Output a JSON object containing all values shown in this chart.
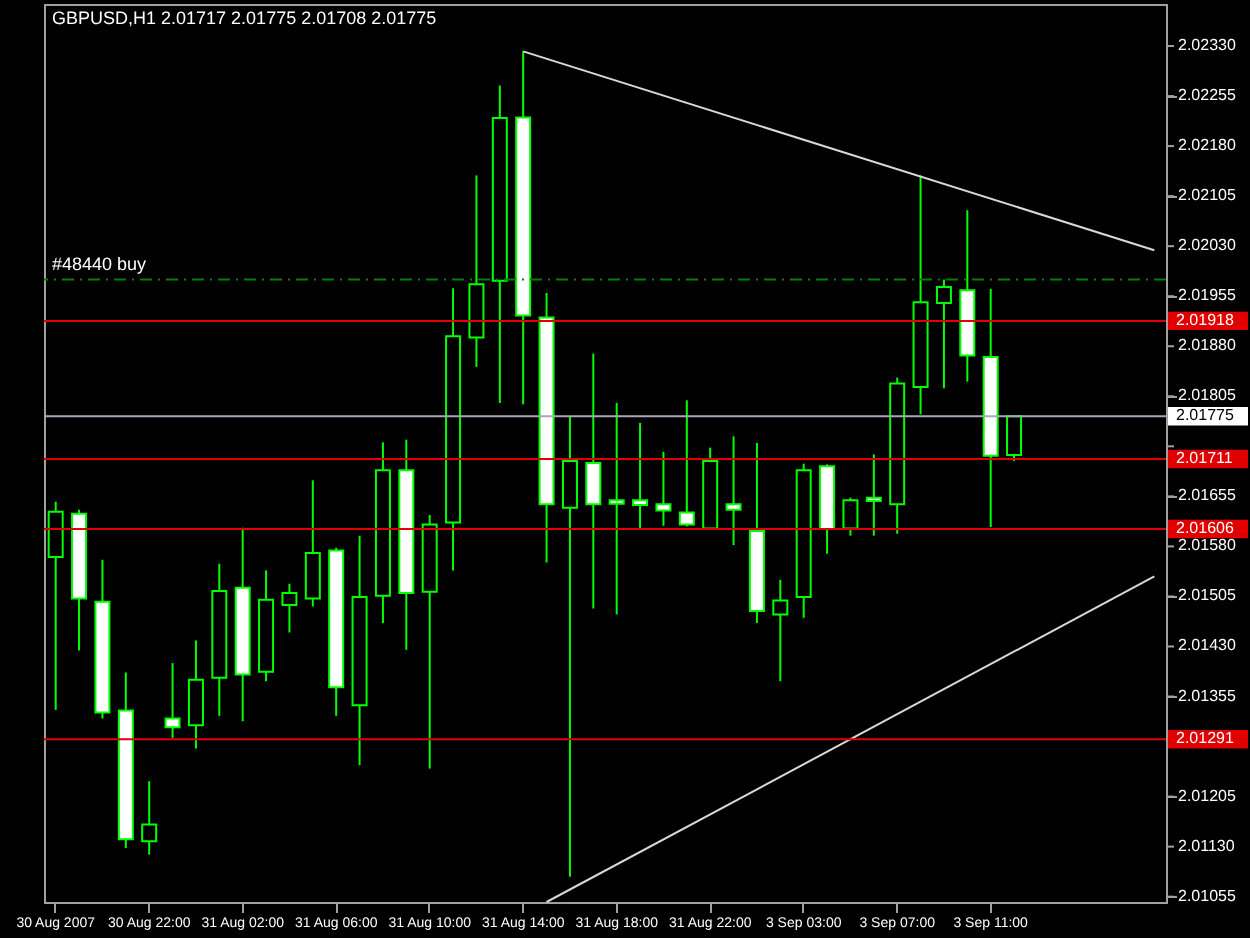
{
  "chart_data": {
    "type": "candlestick",
    "title": "GBPUSD,H1  2.01717 2.01775 2.01708 2.01775",
    "color": "#00ff00",
    "categories": [
      "30 Aug 2007",
      null,
      null,
      null,
      "30 Aug 22:00",
      null,
      null,
      null,
      "31 Aug 02:00",
      null,
      null,
      null,
      "31 Aug 06:00",
      null,
      null,
      null,
      "31 Aug 10:00",
      null,
      null,
      null,
      "31 Aug 14:00",
      null,
      null,
      null,
      "31 Aug 18:00",
      null,
      null,
      null,
      "31 Aug 22:00",
      null,
      null,
      null,
      "3 Sep 03:00",
      null,
      null,
      null,
      "3 Sep 07:00",
      null,
      null,
      null,
      "3 Sep 11:00",
      null,
      null,
      null,
      null,
      null,
      null,
      null
    ],
    "ohlc": [
      [
        2.01564,
        2.01647,
        2.01335,
        2.01632
      ],
      [
        2.01629,
        2.01635,
        2.01424,
        2.01502
      ],
      [
        2.01497,
        2.0156,
        2.01322,
        2.01331
      ],
      [
        2.01334,
        2.01391,
        2.01128,
        2.01141
      ],
      [
        2.01138,
        2.01228,
        2.01118,
        2.01163
      ],
      [
        2.01322,
        2.01405,
        2.01293,
        2.01309
      ],
      [
        2.01312,
        2.01439,
        2.01277,
        2.0138
      ],
      [
        2.01383,
        2.01554,
        2.01326,
        2.01513
      ],
      [
        2.01518,
        2.01608,
        2.01318,
        2.01388
      ],
      [
        2.01392,
        2.01544,
        2.01378,
        2.015
      ],
      [
        2.01492,
        2.01524,
        2.01451,
        2.0151
      ],
      [
        2.01502,
        2.01679,
        2.0149,
        2.0157
      ],
      [
        2.01574,
        2.01578,
        2.01326,
        2.01369
      ],
      [
        2.01342,
        2.01596,
        2.01252,
        2.01504
      ],
      [
        2.01506,
        2.01736,
        2.01465,
        2.01694
      ],
      [
        2.01694,
        2.0174,
        2.01425,
        2.0151
      ],
      [
        2.01512,
        2.01627,
        2.01247,
        2.01613
      ],
      [
        2.01616,
        2.01967,
        2.01544,
        2.01895
      ],
      [
        2.01893,
        2.02136,
        2.01849,
        2.01973
      ],
      [
        2.01978,
        2.02271,
        2.01795,
        2.02222
      ],
      [
        2.02223,
        2.02322,
        2.01793,
        2.01926
      ],
      [
        2.01923,
        2.0196,
        2.01556,
        2.01643
      ],
      [
        2.01638,
        2.01774,
        2.01085,
        2.01708
      ],
      [
        2.01705,
        2.01869,
        2.01487,
        2.01643
      ],
      [
        2.01649,
        2.01795,
        2.01478,
        2.01644
      ],
      [
        2.01649,
        2.01765,
        2.01606,
        2.01642
      ],
      [
        2.01643,
        2.01722,
        2.01611,
        2.01634
      ],
      [
        2.01631,
        2.01799,
        2.0161,
        2.01613
      ],
      [
        2.01607,
        2.01728,
        2.01607,
        2.01708
      ],
      [
        2.01643,
        2.01745,
        2.01582,
        2.01635
      ],
      [
        2.01603,
        2.01735,
        2.01465,
        2.01483
      ],
      [
        2.01478,
        2.0153,
        2.01378,
        2.01499
      ],
      [
        2.01504,
        2.01704,
        2.01473,
        2.01694
      ],
      [
        2.017,
        2.01703,
        2.01569,
        2.01606
      ],
      [
        2.01607,
        2.01653,
        2.01596,
        2.01649
      ],
      [
        2.01653,
        2.01718,
        2.01596,
        2.01648
      ],
      [
        2.01643,
        2.01833,
        2.01599,
        2.01824
      ],
      [
        2.01819,
        2.02136,
        2.01778,
        2.01946
      ],
      [
        2.01945,
        2.0198,
        2.01817,
        2.01969
      ],
      [
        2.01964,
        2.02084,
        2.01827,
        2.01866
      ],
      [
        2.01864,
        2.01966,
        2.01609,
        2.01716
      ],
      [
        2.01717,
        2.01775,
        2.01708,
        2.01775
      ],
      null,
      null,
      null,
      null,
      null,
      null
    ],
    "series": [
      {
        "type": "line",
        "color": "#d8d8d8",
        "values": [
          null,
          null,
          null,
          null,
          null,
          null,
          null,
          null,
          null,
          null,
          null,
          null,
          null,
          null,
          null,
          null,
          null,
          null,
          null,
          null,
          2.02322,
          null,
          null,
          null,
          null,
          null,
          null,
          null,
          null,
          null,
          null,
          null,
          null,
          null,
          null,
          null,
          null,
          null,
          null,
          null,
          null,
          null,
          null,
          null,
          null,
          null,
          null,
          2.02024
        ]
      },
      {
        "type": "line",
        "color": "#d8d8d8",
        "values": [
          null,
          null,
          null,
          null,
          null,
          null,
          null,
          null,
          null,
          null,
          null,
          null,
          null,
          null,
          null,
          null,
          null,
          null,
          null,
          null,
          null,
          2.01047,
          null,
          null,
          null,
          null,
          null,
          null,
          null,
          null,
          null,
          null,
          null,
          null,
          null,
          null,
          null,
          null,
          null,
          null,
          null,
          null,
          null,
          null,
          null,
          null,
          null,
          2.01535
        ]
      }
    ],
    "ref_lines": [
      {
        "axis": "y",
        "value": 2.0198,
        "label": "#48440 buy",
        "color": "#008000",
        "line_style": "dashed"
      },
      {
        "axis": "y",
        "value": 2.01918,
        "label": "2.01918",
        "color": "#e00000"
      },
      {
        "axis": "y",
        "value": 2.01775,
        "label": "2.01775",
        "color": "#a8a8b8"
      },
      {
        "axis": "y",
        "value": 2.01711,
        "label": "2.01711",
        "color": "#e00000"
      },
      {
        "axis": "y",
        "value": 2.01606,
        "label": "2.01606",
        "color": "#e00000"
      },
      {
        "axis": "y",
        "value": 2.01291,
        "label": "2.01291",
        "color": "#e00000"
      }
    ],
    "ylim": [
      2.01047,
      2.02393
    ],
    "yticks": [
      {
        "value": 2.0233,
        "label": "2.02330"
      },
      2.02255,
      {
        "value": 2.0218,
        "label": "2.02180"
      },
      2.02105,
      {
        "value": 2.0203,
        "label": "2.02030"
      },
      2.01955,
      {
        "value": 2.0188,
        "label": "2.01880"
      },
      2.01805,
      {
        "value": 2.0173,
        "label": null
      },
      2.01655,
      {
        "value": 2.0158,
        "label": "2.01580"
      },
      2.01505,
      {
        "value": 2.0143,
        "label": "2.01430"
      },
      2.01355,
      {
        "value": 2.0128,
        "label": null
      },
      2.01205,
      {
        "value": 2.0113,
        "label": "2.01130"
      },
      2.01055
    ],
    "grid": false
  }
}
